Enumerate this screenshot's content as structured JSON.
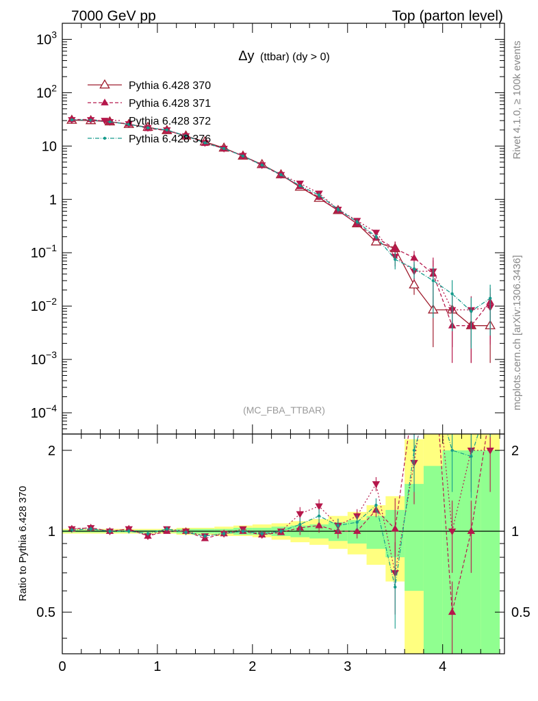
{
  "header": {
    "left": "7000 GeV pp",
    "right": "Top (parton level)"
  },
  "side_labels": {
    "rivet": "Rivet 4.1.0, ≥ 100k events",
    "mcplots": "mcplots.cern.ch [arXiv:1306.3436]"
  },
  "colors": {
    "s370": "#9e1b2c",
    "s371": "#b5174b",
    "s372": "#b5174b",
    "s376": "#169b8c",
    "band_yellow": "#ffff80",
    "band_green": "#90ff90"
  },
  "chart_data": {
    "type": "line",
    "title": "Δy (ttbar) (dy > 0)",
    "title_main": "Δy",
    "title_sub": "(ttbar) (dy > 0)",
    "watermark": "(MC_FBA_TTBAR)",
    "x": [
      0.1,
      0.3,
      0.5,
      0.7,
      0.9,
      1.1,
      1.3,
      1.5,
      1.7,
      1.9,
      2.1,
      2.3,
      2.5,
      2.7,
      2.9,
      3.1,
      3.3,
      3.5,
      3.7,
      3.9,
      4.1,
      4.3,
      4.5
    ],
    "xlim": [
      0,
      4.65
    ],
    "ylim_main": [
      4e-05,
      2000
    ],
    "yscale_main": "log",
    "ylim_ratio": [
      0.35,
      2.3
    ],
    "ratio_ylabel": "Ratio to Pythia 6.428 370",
    "x_ticks": [
      0,
      1,
      2,
      3,
      4
    ],
    "y_ticks_main": [
      {
        "base": "10",
        "exp": "3"
      },
      {
        "base": "10",
        "exp": "2"
      },
      {
        "base": "10",
        "exp": ""
      },
      {
        "base": "1",
        "exp": ""
      },
      {
        "base": "10",
        "exp": "−1"
      },
      {
        "base": "10",
        "exp": "−2"
      },
      {
        "base": "10",
        "exp": "−3"
      },
      {
        "base": "10",
        "exp": "−4"
      }
    ],
    "y_ticks_ratio": [
      "0.5",
      "1",
      "2"
    ],
    "series": [
      {
        "name": "Pythia 6.428 370",
        "marker": "open-triangle-up",
        "line": "solid",
        "values": [
          30.5,
          30.0,
          28.5,
          25.5,
          22.5,
          19.5,
          15.5,
          12.0,
          9.2,
          6.5,
          4.5,
          2.9,
          1.7,
          1.05,
          0.62,
          0.35,
          0.16,
          0.12,
          0.025,
          0.0085,
          0.0085,
          0.0043,
          0.0043
        ]
      },
      {
        "name": "Pythia 6.428 371",
        "marker": "filled-triangle-up",
        "line": "dashed",
        "values": [
          31.5,
          31.5,
          28.5,
          26.0,
          21.5,
          19.5,
          15.5,
          11.3,
          9.0,
          6.5,
          4.35,
          2.85,
          1.75,
          1.1,
          0.62,
          0.35,
          0.19,
          0.12,
          0.08,
          0.04,
          0.0043,
          0.0043,
          0.012
        ]
      },
      {
        "name": "Pythia 6.428 372",
        "marker": "filled-triangle-down",
        "line": "dotted",
        "values": [
          31.0,
          31.0,
          28.5,
          26.0,
          22.0,
          20.0,
          15.5,
          11.5,
          9.0,
          6.6,
          4.4,
          2.9,
          2.0,
          1.3,
          0.65,
          0.4,
          0.24,
          0.085,
          0.045,
          0.045,
          0.0085,
          0.0085,
          0.0095
        ]
      },
      {
        "name": "Pythia 6.428 376",
        "marker": "dot",
        "line": "dashdot",
        "values": [
          31.0,
          30.5,
          28.5,
          25.5,
          22.0,
          20.0,
          15.5,
          11.5,
          9.0,
          6.5,
          4.4,
          2.9,
          1.8,
          1.2,
          0.65,
          0.38,
          0.2,
          0.075,
          0.05,
          0.03,
          0.017,
          0.008,
          0.014
        ]
      }
    ],
    "ratio_series": [
      {
        "name": "Pythia 6.428 371",
        "values": [
          1.02,
          1.03,
          1.0,
          1.02,
          0.96,
          1.0,
          1.0,
          0.94,
          0.98,
          1.0,
          0.97,
          0.99,
          1.03,
          1.05,
          1.0,
          1.0,
          1.2,
          1.02,
          3.2,
          4.7,
          0.5,
          1.0,
          2.8
        ]
      },
      {
        "name": "Pythia 6.428 372",
        "values": [
          1.02,
          1.03,
          1.0,
          1.02,
          0.96,
          1.02,
          1.0,
          0.96,
          0.98,
          1.02,
          0.97,
          1.0,
          1.16,
          1.24,
          1.05,
          1.14,
          1.5,
          0.7,
          1.8,
          5.3,
          1.0,
          2.0,
          2.0
        ]
      },
      {
        "name": "Pythia 6.428 376",
        "values": [
          1.01,
          1.02,
          1.0,
          1.0,
          0.98,
          1.02,
          0.99,
          0.96,
          0.98,
          1.0,
          0.98,
          1.0,
          1.06,
          1.14,
          1.05,
          1.08,
          1.25,
          0.62,
          2.0,
          3.5,
          2.0,
          1.9,
          3.2
        ]
      }
    ],
    "bands": {
      "edges": [
        0.0,
        0.2,
        0.4,
        0.6,
        0.8,
        1.0,
        1.2,
        1.4,
        1.6,
        1.8,
        2.0,
        2.2,
        2.4,
        2.6,
        2.8,
        3.0,
        3.2,
        3.4,
        3.6,
        3.8,
        4.0,
        4.2,
        4.4,
        4.6
      ],
      "yellow": [
        [
          0.98,
          1.02
        ],
        [
          0.98,
          1.02
        ],
        [
          0.98,
          1.02
        ],
        [
          0.98,
          1.02
        ],
        [
          0.98,
          1.02
        ],
        [
          0.98,
          1.02
        ],
        [
          0.97,
          1.03
        ],
        [
          0.97,
          1.03
        ],
        [
          0.96,
          1.04
        ],
        [
          0.96,
          1.05
        ],
        [
          0.95,
          1.06
        ],
        [
          0.93,
          1.07
        ],
        [
          0.91,
          1.09
        ],
        [
          0.89,
          1.11
        ],
        [
          0.86,
          1.14
        ],
        [
          0.82,
          1.18
        ],
        [
          0.75,
          1.25
        ],
        [
          0.65,
          1.35
        ],
        [
          0.35,
          2.2
        ],
        [
          0.35,
          2.3
        ],
        [
          0.35,
          2.3
        ],
        [
          0.35,
          2.3
        ],
        [
          0.35,
          2.3
        ]
      ],
      "green": [
        [
          0.99,
          1.01
        ],
        [
          0.99,
          1.01
        ],
        [
          0.99,
          1.01
        ],
        [
          0.99,
          1.01
        ],
        [
          0.99,
          1.01
        ],
        [
          0.99,
          1.01
        ],
        [
          0.98,
          1.02
        ],
        [
          0.98,
          1.02
        ],
        [
          0.98,
          1.02
        ],
        [
          0.97,
          1.03
        ],
        [
          0.97,
          1.03
        ],
        [
          0.96,
          1.04
        ],
        [
          0.95,
          1.05
        ],
        [
          0.94,
          1.06
        ],
        [
          0.92,
          1.08
        ],
        [
          0.9,
          1.1
        ],
        [
          0.86,
          1.14
        ],
        [
          0.8,
          1.2
        ],
        [
          0.6,
          1.5
        ],
        [
          0.35,
          1.75
        ],
        [
          0.35,
          2.0
        ],
        [
          0.35,
          2.0
        ],
        [
          0.35,
          2.0
        ]
      ]
    }
  }
}
